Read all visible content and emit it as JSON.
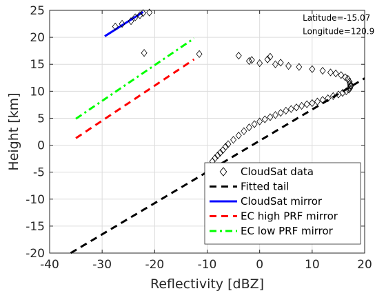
{
  "chart_data": {
    "type": "scatter",
    "xlabel": "Reflectivity [dBZ]",
    "ylabel": "Height [km]",
    "xlim": [
      -40,
      20
    ],
    "ylim": [
      -20,
      25
    ],
    "xticks": [
      -40,
      -30,
      -20,
      -10,
      0,
      10,
      20
    ],
    "yticks": [
      -20,
      -15,
      -10,
      -5,
      0,
      5,
      10,
      15,
      20,
      25
    ],
    "xtick_labels": [
      "-40",
      "-30",
      "-20",
      "-10",
      "0",
      "10",
      "20"
    ],
    "ytick_labels": [
      "-20",
      "-15",
      "-10",
      "-5",
      "0",
      "5",
      "10",
      "15",
      "20",
      "25"
    ],
    "grid": true,
    "legend_position": "bottom-right",
    "annotations": [
      {
        "text": "Latitude=-15.07",
        "x": 8.2,
        "y": 23.1
      },
      {
        "text": "Longitude=120.99",
        "x": 8.2,
        "y": 20.6
      }
    ],
    "series": [
      {
        "name": "CloudSat data",
        "kind": "markers",
        "marker": "diamond",
        "color": "#000000",
        "x": [
          -27.5,
          -26.2,
          -24.5,
          -23.7,
          -22.8,
          -22.2,
          -21.0,
          -22.0,
          -11.5,
          -4.0,
          -2.0,
          -1.5,
          0.0,
          1.5,
          2.0,
          3.0,
          4.0,
          5.5,
          7.5,
          10.0,
          12.0,
          13.5,
          14.5,
          15.5,
          16.3,
          16.8,
          17.1,
          17.2,
          17.3,
          17.3,
          17.2,
          17.0,
          16.5,
          15.8,
          15.0,
          14.0,
          13.0,
          12.0,
          11.0,
          10.0,
          9.0,
          8.0,
          7.0,
          6.0,
          5.0,
          4.0,
          3.0,
          2.0,
          1.0,
          0.0,
          -1.0,
          -2.0,
          -3.0,
          -4.0,
          -5.0,
          -6.0,
          -6.5,
          -7.0,
          -7.5,
          -8.0,
          -8.5,
          -9.0
        ],
        "y": [
          22.0,
          22.5,
          23.0,
          23.7,
          24.1,
          24.5,
          24.6,
          17.1,
          16.9,
          16.6,
          15.6,
          15.8,
          15.2,
          15.9,
          16.4,
          15.0,
          15.3,
          14.7,
          14.5,
          14.1,
          13.8,
          13.5,
          13.3,
          13.0,
          12.6,
          12.3,
          11.8,
          11.4,
          11.1,
          10.9,
          10.6,
          10.3,
          10.0,
          9.7,
          9.4,
          9.1,
          8.7,
          8.4,
          8.1,
          7.8,
          7.6,
          7.3,
          7.0,
          6.7,
          6.4,
          6.0,
          5.6,
          5.2,
          4.8,
          4.4,
          3.9,
          3.3,
          2.6,
          1.8,
          1.0,
          0.2,
          -0.3,
          -0.9,
          -1.4,
          -1.9,
          -2.4,
          -3.0
        ]
      },
      {
        "name": "Fitted tail",
        "kind": "line",
        "dash": "dashed",
        "color": "#000000",
        "x": [
          -36.0,
          20.0
        ],
        "y": [
          -20.0,
          12.4
        ]
      },
      {
        "name": "CloudSat mirror",
        "kind": "line",
        "dash": "solid",
        "color": "#0000ff",
        "x": [
          -29.5,
          -22.2
        ],
        "y": [
          20.2,
          24.7
        ]
      },
      {
        "name": "EC high PRF mirror",
        "kind": "line",
        "dash": "dashed",
        "color": "#ff0000",
        "x": [
          -35.0,
          -12.5
        ],
        "y": [
          1.3,
          15.9
        ]
      },
      {
        "name": "EC low PRF mirror",
        "kind": "line",
        "dash": "dashdot",
        "color": "#00ff00",
        "x": [
          -35.0,
          -12.5
        ],
        "y": [
          4.9,
          19.8
        ]
      }
    ]
  }
}
